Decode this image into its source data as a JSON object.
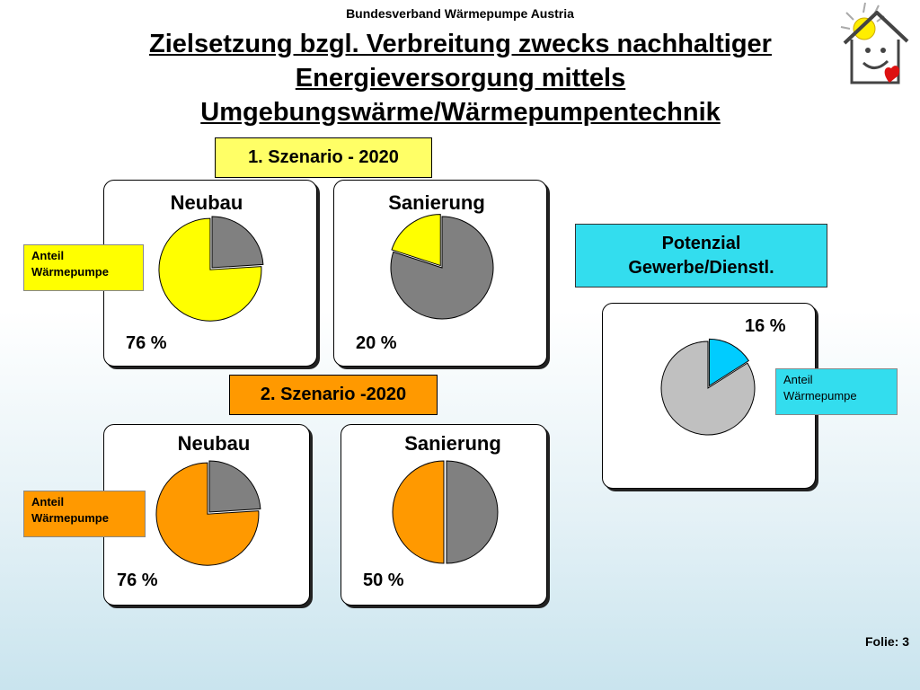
{
  "header": {
    "organization": "Bundesverband Wärmepumpe Austria",
    "title_line1": "Zielsetzung bzgl. Verbreitung zwecks nachhaltiger",
    "title_line2": "Energieversorgung mittels",
    "title_line3": "Umgebungswärme/Wärmepumpentechnik"
  },
  "scenario1": {
    "label": "1. Szenario - 2020"
  },
  "scenario2": {
    "label": "2. Szenario -2020"
  },
  "potential": {
    "line1": "Potenzial",
    "line2": "Gewerbe/Dienstl."
  },
  "legend": {
    "anteil_line1": "Anteil",
    "anteil_line2": "Wärmepumpe"
  },
  "footer": {
    "slide": "Folie: 3"
  },
  "chart_data": [
    {
      "type": "pie",
      "title": "Neubau",
      "group": "1. Szenario - 2020",
      "slices": [
        {
          "label": "Anteil Wärmepumpe",
          "value": 76,
          "color": "#ffff00"
        },
        {
          "label": "",
          "value": 24,
          "color": "#808080"
        }
      ],
      "data_label": "76 %"
    },
    {
      "type": "pie",
      "title": "Sanierung",
      "group": "1. Szenario - 2020",
      "slices": [
        {
          "label": "Anteil Wärmepumpe",
          "value": 20,
          "color": "#ffff00"
        },
        {
          "label": "",
          "value": 80,
          "color": "#808080"
        }
      ],
      "data_label": "20 %"
    },
    {
      "type": "pie",
      "title": "Neubau",
      "group": "2. Szenario -2020",
      "slices": [
        {
          "label": "Anteil Wärmepumpe",
          "value": 76,
          "color": "#ff9900"
        },
        {
          "label": "",
          "value": 24,
          "color": "#808080"
        }
      ],
      "data_label": "76 %"
    },
    {
      "type": "pie",
      "title": "Sanierung",
      "group": "2. Szenario -2020",
      "slices": [
        {
          "label": "Anteil Wärmepumpe",
          "value": 50,
          "color": "#ff9900"
        },
        {
          "label": "",
          "value": 50,
          "color": "#808080"
        }
      ],
      "data_label": "50 %"
    },
    {
      "type": "pie",
      "title": "",
      "group": "Potenzial Gewerbe/Dienstl.",
      "slices": [
        {
          "label": "Anteil Wärmepumpe",
          "value": 16,
          "color": "#00ccff"
        },
        {
          "label": "",
          "value": 84,
          "color": "#c0c0c0"
        }
      ],
      "data_label": "16 %"
    }
  ]
}
